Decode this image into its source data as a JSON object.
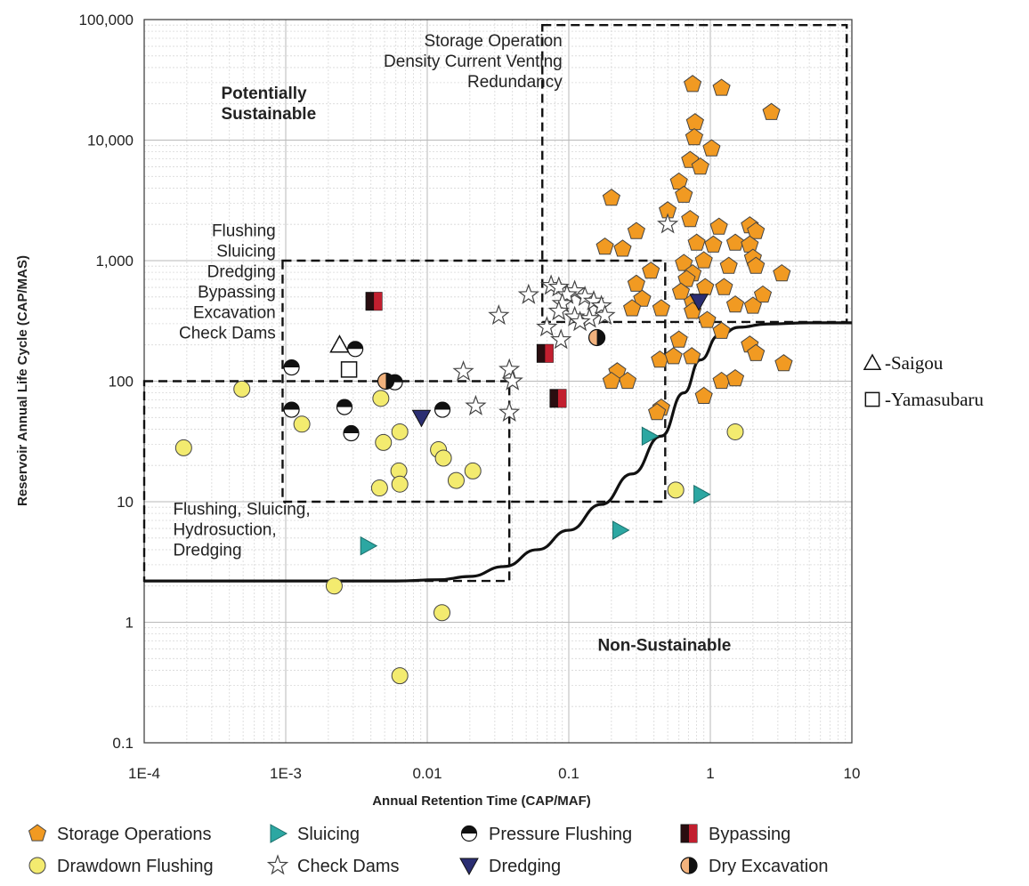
{
  "chart_data": {
    "type": "scatter",
    "xlabel": "Annual Retention Time (CAP/MAF)",
    "ylabel": "Reservoir Annual Life Cycle (CAP/MAS)",
    "x_scale": "log",
    "y_scale": "log",
    "xlim": [
      0.0001,
      10
    ],
    "ylim": [
      0.1,
      100000
    ],
    "grid": true,
    "x_tick_labels": [
      "1E-4",
      "1E-3",
      "0.01",
      "0.1",
      "1",
      "10"
    ],
    "x_tick_values": [
      0.0001,
      0.001,
      0.01,
      0.1,
      1,
      10
    ],
    "y_tick_labels": [
      "0.1",
      "1",
      "10",
      "100",
      "1,000",
      "10,000",
      "100,000"
    ],
    "y_tick_values": [
      0.1,
      1,
      10,
      100,
      1000,
      10000,
      100000
    ],
    "annotations": [
      {
        "lines": [
          "Storage Operation",
          "Density Current Venting",
          "Redundancy"
        ],
        "x": 0.09,
        "y": 60000,
        "anchor": "end",
        "bold": false
      },
      {
        "lines": [
          "Potentially",
          "Sustainable"
        ],
        "x": 0.00035,
        "y": 22000,
        "anchor": "start",
        "bold": true
      },
      {
        "lines": [
          "Flushing",
          "Sluicing",
          "Dredging",
          "Bypassing",
          "Excavation",
          "Check Dams"
        ],
        "x": 0.00085,
        "y": 1600,
        "anchor": "end",
        "bold": false
      },
      {
        "lines": [
          "Flushing, Sluicing,",
          "Hydrosuction,",
          "Dredging"
        ],
        "x": 0.00016,
        "y": 7.8,
        "anchor": "start",
        "bold": false
      },
      {
        "lines": [
          "Non-Sustainable"
        ],
        "x": 0.16,
        "y": 0.58,
        "anchor": "start",
        "bold": true
      }
    ],
    "boundary_curve": [
      [
        0.0001,
        2.2
      ],
      [
        0.001,
        2.2
      ],
      [
        0.003,
        2.2
      ],
      [
        0.006,
        2.2
      ],
      [
        0.012,
        2.25
      ],
      [
        0.02,
        2.4
      ],
      [
        0.035,
        2.9
      ],
      [
        0.06,
        4.0
      ],
      [
        0.1,
        5.8
      ],
      [
        0.17,
        9.5
      ],
      [
        0.28,
        17
      ],
      [
        0.45,
        35
      ],
      [
        0.65,
        80
      ],
      [
        0.85,
        150
      ],
      [
        1.15,
        240
      ],
      [
        1.6,
        280
      ],
      [
        2.5,
        298
      ],
      [
        5,
        305
      ],
      [
        10,
        305
      ]
    ],
    "regions": [
      {
        "x0": 0.065,
        "x1": 9.2,
        "y0": 310,
        "y1": 90000
      },
      {
        "x0": 0.00095,
        "x1": 0.48,
        "y0": 10,
        "y1": 1000
      },
      {
        "x0": 0.0001,
        "x1": 0.038,
        "y0": 2.2,
        "y1": 100
      }
    ],
    "series": [
      {
        "name": "Storage Operations",
        "marker": "pentagon",
        "color": "#f19a22",
        "points": [
          [
            0.75,
            29000
          ],
          [
            1.2,
            27000
          ],
          [
            2.7,
            17000
          ],
          [
            0.78,
            14000
          ],
          [
            0.77,
            10500
          ],
          [
            1.02,
            8500
          ],
          [
            0.72,
            6800
          ],
          [
            0.85,
            6000
          ],
          [
            0.6,
            4500
          ],
          [
            0.65,
            3500
          ],
          [
            0.2,
            3300
          ],
          [
            0.5,
            2600
          ],
          [
            0.72,
            2200
          ],
          [
            1.15,
            1900
          ],
          [
            0.3,
            1750
          ],
          [
            1.9,
            1950
          ],
          [
            2.1,
            1750
          ],
          [
            0.8,
            1400
          ],
          [
            1.05,
            1350
          ],
          [
            0.18,
            1300
          ],
          [
            0.24,
            1250
          ],
          [
            1.5,
            1400
          ],
          [
            1.9,
            1350
          ],
          [
            2.0,
            1050
          ],
          [
            0.65,
            950
          ],
          [
            0.9,
            1000
          ],
          [
            0.38,
            820
          ],
          [
            0.75,
            780
          ],
          [
            1.35,
            900
          ],
          [
            3.2,
            780
          ],
          [
            0.3,
            640
          ],
          [
            0.68,
            700
          ],
          [
            0.92,
            600
          ],
          [
            2.1,
            900
          ],
          [
            0.62,
            550
          ],
          [
            1.25,
            600
          ],
          [
            2.35,
            520
          ],
          [
            0.33,
            480
          ],
          [
            0.75,
            450
          ],
          [
            1.5,
            430
          ],
          [
            2.0,
            420
          ],
          [
            0.28,
            400
          ],
          [
            0.45,
            400
          ],
          [
            0.75,
            380
          ],
          [
            0.95,
            320
          ],
          [
            1.2,
            260
          ],
          [
            0.6,
            220
          ],
          [
            0.44,
            150
          ],
          [
            0.55,
            160
          ],
          [
            0.74,
            160
          ],
          [
            0.22,
            120
          ],
          [
            0.26,
            100
          ],
          [
            0.2,
            100
          ],
          [
            1.9,
            200
          ],
          [
            2.1,
            170
          ],
          [
            3.3,
            140
          ],
          [
            1.2,
            100
          ],
          [
            1.5,
            105
          ],
          [
            0.9,
            75
          ],
          [
            0.45,
            60
          ],
          [
            0.42,
            55
          ]
        ]
      },
      {
        "name": "Drawdown Flushing",
        "marker": "circle",
        "color": "#f3eb6f",
        "points": [
          [
            0.00019,
            28
          ],
          [
            0.00049,
            86
          ],
          [
            0.0013,
            44
          ],
          [
            0.0047,
            72
          ],
          [
            0.0049,
            31
          ],
          [
            0.0064,
            38
          ],
          [
            0.0063,
            18
          ],
          [
            0.0064,
            14
          ],
          [
            0.0046,
            13
          ],
          [
            0.012,
            27
          ],
          [
            0.013,
            23
          ],
          [
            0.016,
            15
          ],
          [
            0.021,
            18
          ],
          [
            1.5,
            38
          ],
          [
            0.57,
            12.5
          ],
          [
            0.0022,
            2
          ],
          [
            0.0127,
            1.2
          ],
          [
            0.0064,
            0.36
          ]
        ]
      },
      {
        "name": "Sluicing",
        "marker": "triangle-right",
        "color": "#2ca7a2",
        "points": [
          [
            0.0038,
            4.3
          ],
          [
            0.23,
            5.8
          ],
          [
            0.37,
            35
          ],
          [
            0.86,
            11.5
          ]
        ]
      },
      {
        "name": "Check Dams",
        "marker": "star",
        "color": "#ffffff",
        "points": [
          [
            0.5,
            2000
          ],
          [
            0.075,
            620
          ],
          [
            0.085,
            600
          ],
          [
            0.11,
            560
          ],
          [
            0.052,
            520
          ],
          [
            0.097,
            520
          ],
          [
            0.13,
            500
          ],
          [
            0.15,
            460
          ],
          [
            0.09,
            440
          ],
          [
            0.17,
            420
          ],
          [
            0.032,
            350
          ],
          [
            0.085,
            380
          ],
          [
            0.11,
            340
          ],
          [
            0.14,
            330
          ],
          [
            0.18,
            350
          ],
          [
            0.12,
            310
          ],
          [
            0.07,
            280
          ],
          [
            0.088,
            220
          ],
          [
            0.018,
            120
          ],
          [
            0.038,
            125
          ],
          [
            0.04,
            100
          ],
          [
            0.022,
            62
          ],
          [
            0.038,
            55
          ]
        ]
      },
      {
        "name": "Pressure Flushing",
        "marker": "half-circle",
        "color": "#111111",
        "points": [
          [
            0.0031,
            185
          ],
          [
            0.0011,
            130
          ],
          [
            0.0011,
            58
          ],
          [
            0.0026,
            61
          ],
          [
            0.0029,
            37
          ],
          [
            0.0128,
            58
          ],
          [
            0.0059,
            98
          ]
        ]
      },
      {
        "name": "Dredging",
        "marker": "triangle-down",
        "color": "#2b2e72",
        "points": [
          [
            0.0091,
            50
          ],
          [
            0.83,
            460
          ]
        ]
      },
      {
        "name": "Bypassing",
        "marker": "bypass",
        "color": "#c21f2f",
        "points": [
          [
            0.0042,
            460
          ],
          [
            0.068,
            170
          ],
          [
            0.084,
            72
          ]
        ]
      },
      {
        "name": "Dry Excavation",
        "marker": "dry",
        "color": "#f2b27d",
        "points": [
          [
            0.0051,
            100
          ],
          [
            0.158,
            230
          ]
        ]
      }
    ],
    "overlay_points": [
      {
        "name": "Saigou",
        "marker": "open-triangle",
        "x": 0.0024,
        "y": 200
      },
      {
        "name": "Yamasubaru",
        "marker": "open-square",
        "x": 0.0028,
        "y": 125
      }
    ]
  },
  "legend": [
    {
      "label": "Storage Operations",
      "marker": "pentagon",
      "color": "#f19a22"
    },
    {
      "label": "Sluicing",
      "marker": "triangle-right",
      "color": "#2ca7a2"
    },
    {
      "label": "Pressure Flushing",
      "marker": "half-circle",
      "color": "#111111"
    },
    {
      "label": "Bypassing",
      "marker": "bypass",
      "color": "#c21f2f"
    },
    {
      "label": "Drawdown Flushing",
      "marker": "circle",
      "color": "#f3eb6f"
    },
    {
      "label": "Check Dams",
      "marker": "star",
      "color": "#ffffff"
    },
    {
      "label": "Dredging",
      "marker": "triangle-down",
      "color": "#2b2e72"
    },
    {
      "label": "Dry Excavation",
      "marker": "dry",
      "color": "#f2b27d"
    }
  ],
  "side_legend": [
    {
      "label": "-Saigou",
      "marker": "open-triangle"
    },
    {
      "label": "-Yamasubaru",
      "marker": "open-square"
    }
  ]
}
